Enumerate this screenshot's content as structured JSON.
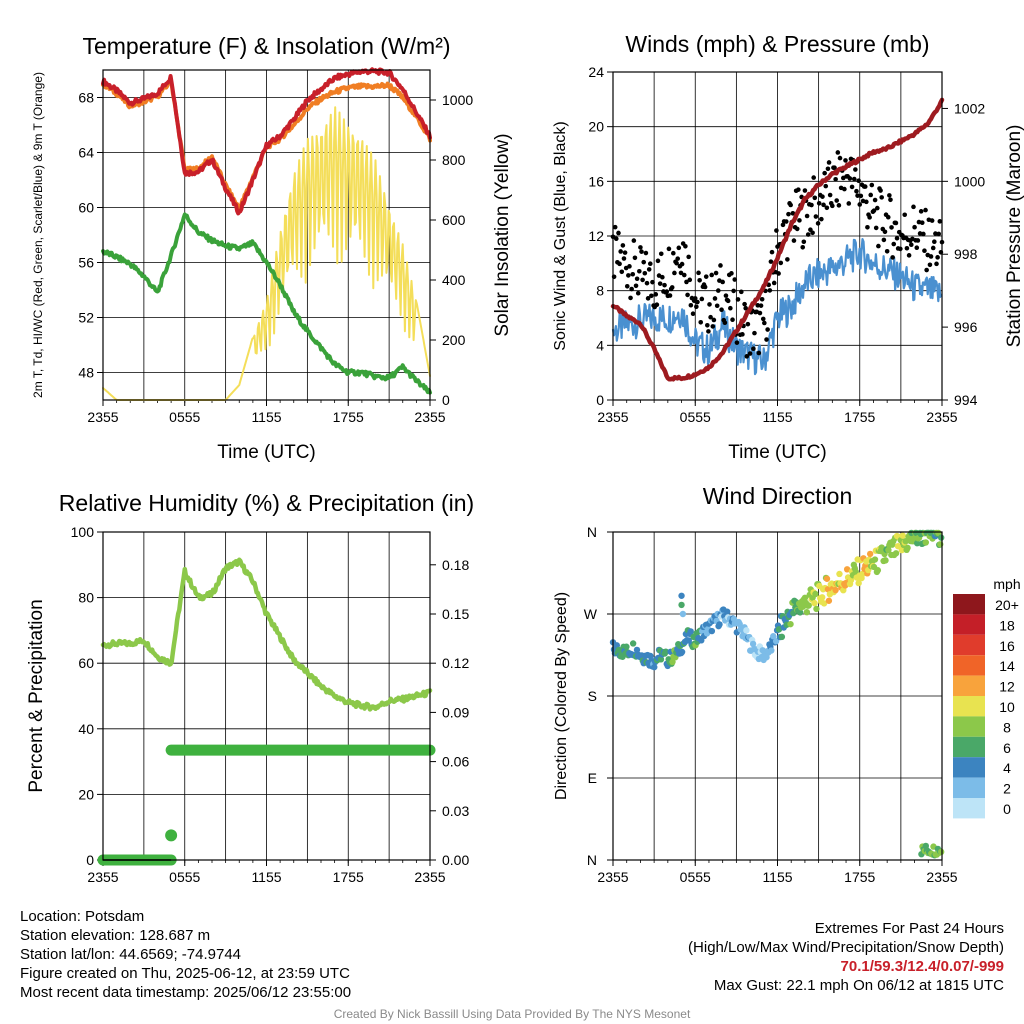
{
  "chart_data": [
    {
      "type": "line",
      "title": "Temperature (F) & Insolation (W/m²)",
      "xlabel": "Time (UTC)",
      "ylabel_left": "2m T, Td, HI/WC (Red, Green, Scarlet/Blue) & 9m T (Orange)",
      "ylabel_right": "Solar Insolation (Yellow)",
      "x_ticks": [
        "2355",
        "0555",
        "1155",
        "1755",
        "2355"
      ],
      "y_left_ticks": [
        "48",
        "52",
        "56",
        "60",
        "64",
        "68"
      ],
      "y_right_ticks": [
        "0",
        "200",
        "400",
        "600",
        "800",
        "1000"
      ],
      "ylim_left": [
        46,
        70
      ],
      "ylim_right": [
        0,
        1100
      ],
      "grid": true,
      "x_hours": [
        0,
        1,
        2,
        3,
        4,
        5,
        6,
        7,
        8,
        9,
        10,
        11,
        12,
        13,
        14,
        15,
        16,
        17,
        18,
        19,
        20,
        21,
        22,
        23,
        24
      ],
      "series": [
        {
          "role": "2m T",
          "color": "#c8202a",
          "axis": "left",
          "values": [
            69.2,
            68.5,
            67.6,
            67.9,
            68.3,
            69.5,
            62.5,
            62.6,
            63.5,
            61.4,
            59.6,
            62.0,
            64.5,
            65.2,
            66.4,
            67.8,
            68.6,
            69.4,
            69.7,
            69.9,
            69.9,
            69.8,
            68.6,
            66.9,
            65.2
          ]
        },
        {
          "role": "9m T",
          "color": "#f07e24",
          "axis": "left",
          "values": [
            69.0,
            68.3,
            67.4,
            67.7,
            68.1,
            69.2,
            62.7,
            62.8,
            63.7,
            61.6,
            59.9,
            62.2,
            64.4,
            65.0,
            66.0,
            67.2,
            67.9,
            68.4,
            68.7,
            68.8,
            68.8,
            68.9,
            68.0,
            66.6,
            65.0
          ]
        },
        {
          "role": "2m Td",
          "color": "#3aa23a",
          "axis": "left",
          "values": [
            56.8,
            56.4,
            55.9,
            55.0,
            53.8,
            56.5,
            59.5,
            58.2,
            57.6,
            57.2,
            57.0,
            57.4,
            56.0,
            54.4,
            52.4,
            51.0,
            49.8,
            48.6,
            48.0,
            48.0,
            47.7,
            47.6,
            48.4,
            47.4,
            46.5
          ]
        },
        {
          "role": "Solar Insolation",
          "color": "#f4de5a",
          "axis": "right",
          "values": [
            40,
            0,
            0,
            0,
            0,
            0,
            0,
            0,
            0,
            0,
            50,
            210,
            330,
            560,
            760,
            870,
            910,
            980,
            920,
            880,
            800,
            650,
            520,
            330,
            80
          ]
        }
      ]
    },
    {
      "type": "line",
      "title": "Winds (mph) & Pressure (mb)",
      "xlabel": "Time (UTC)",
      "ylabel_left": "Sonic Wind & Gust (Blue, Black)",
      "ylabel_right": "Station Pressure (Maroon)",
      "x_ticks": [
        "2355",
        "0555",
        "1155",
        "1755",
        "2355"
      ],
      "y_left_ticks": [
        "0",
        "4",
        "8",
        "12",
        "16",
        "20",
        "24"
      ],
      "y_right_ticks": [
        "994",
        "996",
        "998",
        "1000",
        "1002"
      ],
      "ylim_left": [
        0,
        24
      ],
      "ylim_right": [
        994,
        1003
      ],
      "grid": true,
      "x_hours": [
        0,
        1,
        2,
        3,
        4,
        5,
        6,
        7,
        8,
        9,
        10,
        11,
        12,
        13,
        14,
        15,
        16,
        17,
        18,
        19,
        20,
        21,
        22,
        23,
        24
      ],
      "series": [
        {
          "role": "Sonic Wind",
          "color": "#4a90d0",
          "axis": "left",
          "style": "line",
          "values": [
            5.0,
            5.5,
            5.8,
            6.0,
            6.0,
            6.5,
            4.2,
            3.6,
            5.5,
            3.8,
            3.2,
            2.8,
            6.0,
            6.8,
            8.5,
            9.2,
            9.6,
            10.2,
            10.8,
            10.0,
            9.5,
            9.0,
            8.2,
            8.0,
            7.6
          ]
        },
        {
          "role": "Gust",
          "color": "#000000",
          "axis": "left",
          "style": "points",
          "values": [
            10.5,
            10.0,
            9.0,
            8.5,
            9.5,
            11.5,
            7.5,
            7.0,
            8.0,
            6.5,
            5.0,
            5.5,
            11.0,
            13.0,
            13.5,
            14.5,
            15.5,
            16.5,
            15.5,
            13.5,
            13.0,
            12.0,
            12.5,
            11.5,
            11.0
          ]
        },
        {
          "role": "Station Pressure",
          "color": "#9e1b20",
          "axis": "right",
          "style": "line",
          "values": [
            996.6,
            996.3,
            996.1,
            995.4,
            994.6,
            994.6,
            994.7,
            994.9,
            995.3,
            995.9,
            996.5,
            997.1,
            997.9,
            998.8,
            999.5,
            999.9,
            1000.2,
            1000.4,
            1000.6,
            1000.8,
            1000.9,
            1001.1,
            1001.3,
            1001.6,
            1002.2
          ]
        }
      ]
    },
    {
      "type": "line",
      "title": "Relative Humidity (%) & Precipitation (in)",
      "xlabel": "",
      "ylabel_left": "Percent & Precipitation",
      "x_ticks": [
        "2355",
        "0555",
        "1155",
        "1755",
        "2355"
      ],
      "y_left_ticks": [
        "0",
        "20",
        "40",
        "60",
        "80",
        "100"
      ],
      "y_right_ticks": [
        "0.00",
        "0.03",
        "0.06",
        "0.09",
        "0.12",
        "0.15",
        "0.18"
      ],
      "ylim_left": [
        0,
        100
      ],
      "ylim_right": [
        0,
        0.2
      ],
      "grid": true,
      "x_hours": [
        0,
        1,
        2,
        3,
        4,
        5,
        6,
        7,
        8,
        9,
        10,
        11,
        12,
        13,
        14,
        15,
        16,
        17,
        18,
        19,
        20,
        21,
        22,
        23,
        24
      ],
      "series": [
        {
          "role": "Relative Humidity",
          "color": "#8cc84a",
          "axis": "left",
          "values": [
            65.5,
            66.0,
            66.0,
            67.0,
            62.0,
            60.0,
            88.0,
            80.0,
            81.0,
            89.0,
            91.0,
            85.0,
            75.0,
            68.0,
            61.0,
            57.0,
            53.0,
            50.0,
            48.0,
            47.0,
            46.5,
            48.5,
            49.0,
            50.0,
            51.0
          ]
        }
      ],
      "precipitation": {
        "color": "#3fb13f",
        "spike": {
          "hour": 5.0,
          "value": 0.015
        },
        "segments": [
          {
            "from_hour": 0.0,
            "to_hour": 5.0,
            "value": 0.0
          },
          {
            "from_hour": 5.0,
            "to_hour": 24.0,
            "value": 0.067
          }
        ]
      }
    },
    {
      "type": "scatter",
      "title": "Wind Direction",
      "ylabel": "Direction (Colored By Speed)",
      "x_ticks": [
        "2355",
        "0555",
        "1155",
        "1755",
        "2355"
      ],
      "y_ticks": [
        "N",
        "E",
        "S",
        "W",
        "N"
      ],
      "ylim": [
        0,
        360
      ],
      "grid": true,
      "x_hours": [
        0.0,
        0.5,
        1.0,
        1.5,
        2.0,
        2.5,
        3.0,
        3.5,
        4.0,
        4.5,
        5.0,
        5.5,
        6.0,
        6.5,
        7.0,
        7.5,
        8.0,
        8.5,
        9.0,
        9.5,
        10.0,
        10.5,
        11.0,
        11.5,
        12.0,
        12.5,
        13.0,
        13.5,
        14.0,
        14.5,
        15.0,
        15.5,
        16.0,
        16.5,
        17.0,
        17.5,
        18.0,
        18.5,
        19.0,
        19.5,
        20.0,
        20.5,
        21.0,
        21.5,
        22.0,
        22.5,
        23.0,
        23.5,
        24.0
      ],
      "directions": [
        232,
        230,
        228,
        233,
        225,
        222,
        218,
        226,
        220,
        224,
        235,
        245,
        240,
        250,
        255,
        262,
        268,
        265,
        258,
        250,
        238,
        228,
        225,
        232,
        248,
        260,
        272,
        278,
        282,
        285,
        290,
        296,
        300,
        305,
        308,
        312,
        318,
        322,
        325,
        330,
        335,
        340,
        345,
        350,
        355,
        358,
        359,
        358,
        360
      ],
      "speeds": [
        4,
        5,
        6,
        4,
        6,
        5,
        4,
        6,
        5,
        7,
        5,
        4,
        6,
        4,
        3,
        3,
        2,
        2,
        3,
        2,
        2,
        1,
        2,
        3,
        4,
        5,
        6,
        7,
        8,
        9,
        9,
        10,
        11,
        10,
        12,
        9,
        10,
        11,
        9,
        8,
        7,
        8,
        9,
        7,
        8,
        6,
        7,
        6,
        6
      ],
      "late_north_cluster": {
        "from_hour": 22.5,
        "to_hour": 24.0,
        "direction": 5,
        "speed": 7
      },
      "outlier": {
        "hour": 5.0,
        "direction": 280,
        "speed": 6
      },
      "colorbar": {
        "unit": "mph",
        "labels": [
          "20+",
          "18",
          "16",
          "14",
          "12",
          "10",
          "8",
          "6",
          "4",
          "2",
          "0"
        ],
        "colors": [
          "#8e171c",
          "#c41f28",
          "#e03c2c",
          "#f06428",
          "#f8a33c",
          "#e8e350",
          "#8cc84a",
          "#4aa868",
          "#3c84c0",
          "#7cbce8",
          "#bde4f7"
        ]
      }
    }
  ],
  "footer": {
    "location": "Location: Potsdam",
    "elevation": "Station elevation: 128.687 m",
    "latlon": "Station lat/lon: 44.6569; -74.9744",
    "created": "Figure created on Thu, 2025-06-12, at 23:59 UTC",
    "recent": "Most recent data timestamp: 2025/06/12 23:55:00",
    "extremes_title": "Extremes For Past 24 Hours",
    "extremes_desc": "(High/Low/Max Wind/Precipitation/Snow Depth)",
    "extremes_values": "70.1/59.3/12.4/0.07/-999",
    "max_gust": "Max Gust: 22.1 mph On 06/12 at 1815 UTC",
    "credit": "Created By Nick Bassill Using Data Provided By The NYS Mesonet"
  }
}
